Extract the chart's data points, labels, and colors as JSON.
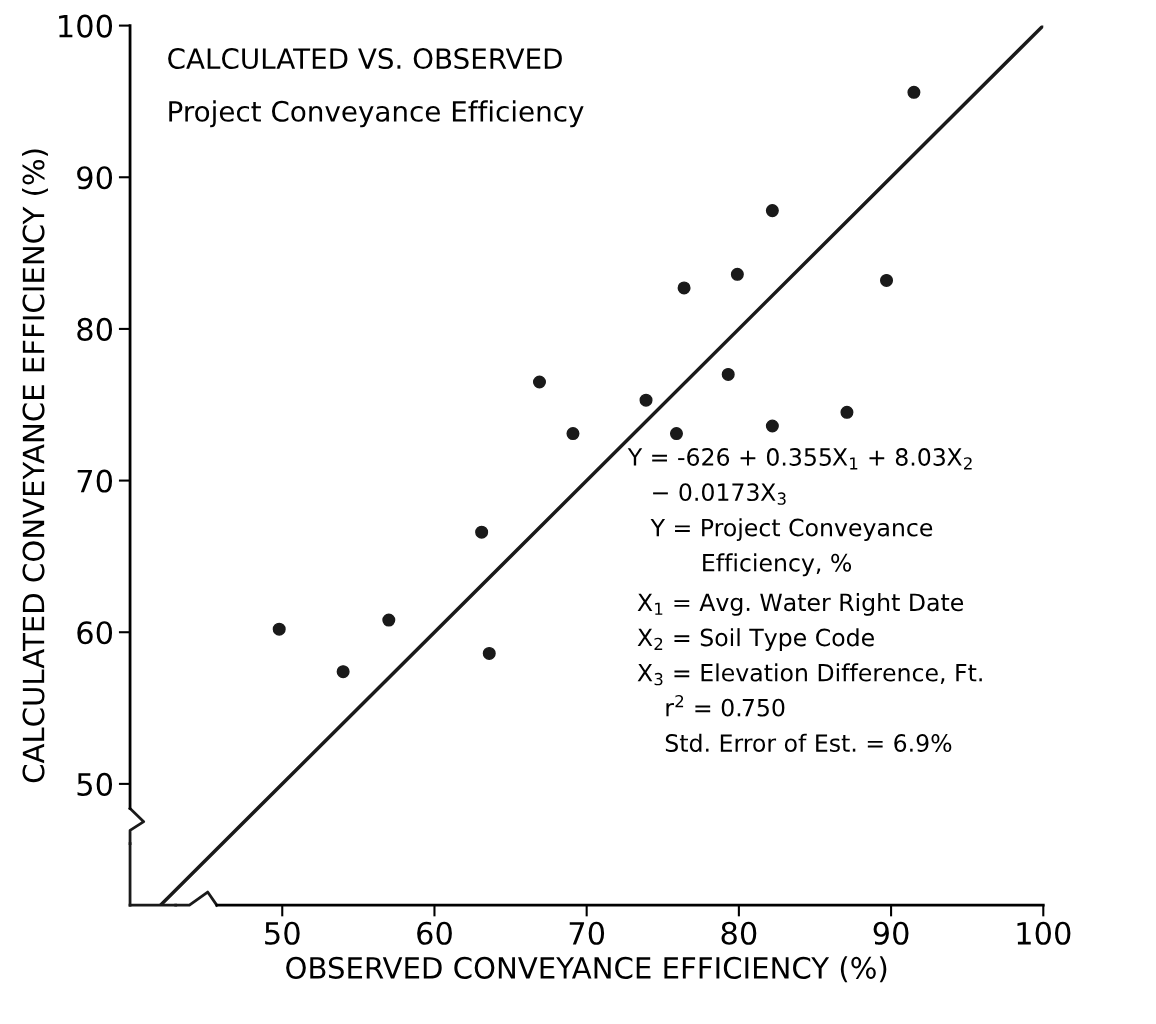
{
  "chart_data": {
    "type": "scatter",
    "title": "CALCULATED VS. OBSERVED",
    "subtitle": "Project Conveyance Efficiency",
    "xlabel": "OBSERVED CONVEYANCE EFFICIENCY (%)",
    "ylabel": "CALCULATED CONVEYANCE EFFICIENCY (%)",
    "xlim": [
      40,
      100
    ],
    "ylim": [
      42,
      100
    ],
    "xticks": [
      50,
      60,
      70,
      80,
      90,
      100
    ],
    "yticks": [
      50,
      60,
      70,
      80,
      90,
      100
    ],
    "grid": false,
    "marker": "circle",
    "series": [
      {
        "color": "#1a1a1a",
        "x": [
          49.8,
          54.0,
          57.0,
          63.6,
          63.1,
          66.9,
          69.1,
          73.9,
          75.9,
          76.4,
          79.3,
          79.9,
          82.2,
          82.2,
          87.1,
          89.7,
          91.5
        ],
        "values": [
          60.2,
          57.4,
          60.8,
          58.6,
          66.6,
          76.5,
          73.1,
          75.3,
          73.1,
          82.7,
          77.0,
          83.6,
          73.6,
          87.8,
          74.5,
          83.2,
          95.6
        ]
      },
      {
        "type": "line",
        "color": "#1a1a1a",
        "x": [
          42,
          100
        ],
        "values": [
          42,
          100
        ],
        "marker": "none"
      }
    ],
    "annotations": [
      "Y = -626 + 0.355X$_{1}$ + 8.03X$_{2}$",
      "− 0.0173X$_{3}$",
      "Y = Project Conveyance",
      "Efficiency, %",
      "X$_{1}$ = Avg. Water Right Date",
      "X$_{2}$ = Soil Type Code",
      "X$_{3}$ = Elevation Difference, Ft.",
      "r$^{2}$ = 0.750",
      "Std. Error of Est. = 6.9%"
    ]
  }
}
